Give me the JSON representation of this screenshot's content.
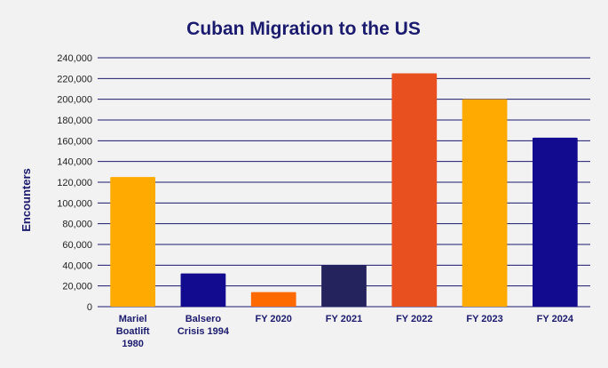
{
  "chart_data": {
    "type": "bar",
    "title": "Cuban Migration to the US",
    "xlabel": "",
    "ylabel": "Encounters",
    "categories": [
      [
        "Mariel",
        "Boatlift",
        "1980"
      ],
      [
        "Balsero",
        "Crisis 1994"
      ],
      [
        "FY 2020"
      ],
      [
        "FY 2021"
      ],
      [
        "FY 2022"
      ],
      [
        "FY 2023"
      ],
      [
        "FY 2024"
      ]
    ],
    "values": [
      125000,
      32000,
      14000,
      40000,
      225000,
      200000,
      163000
    ],
    "bar_colors": [
      "#ffaa00",
      "#120a8f",
      "#ff6a00",
      "#25235e",
      "#e85020",
      "#ffaa00",
      "#120a8f"
    ],
    "ylim": [
      0,
      240000
    ],
    "yticks": [
      0,
      20000,
      40000,
      60000,
      80000,
      100000,
      120000,
      140000,
      160000,
      180000,
      200000,
      220000,
      240000
    ],
    "ytick_labels": [
      "0",
      "20,000",
      "40,000",
      "60,000",
      "80,000",
      "100,000",
      "120,000",
      "140,000",
      "160,000",
      "180,000",
      "200,000",
      "220,000",
      "240,000"
    ],
    "grid": true,
    "legend": "none"
  }
}
